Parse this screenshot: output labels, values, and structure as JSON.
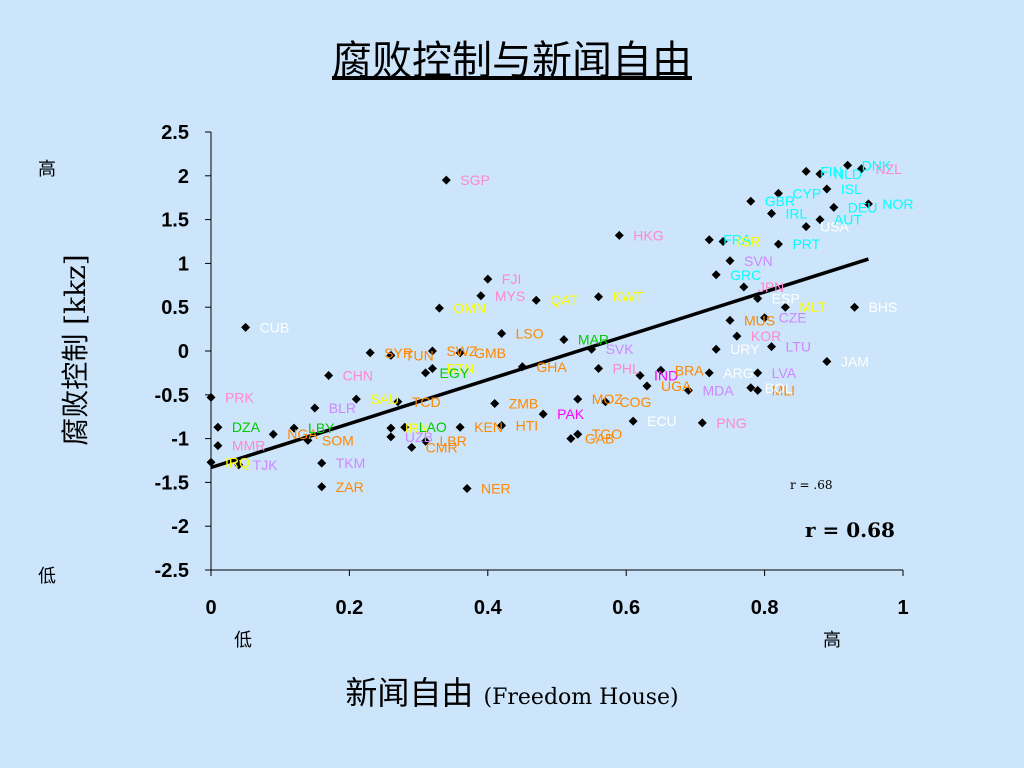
{
  "header": {
    "title": "腐败控制与新闻自由"
  },
  "axes": {
    "ylabel": "腐败控制 [kkz]",
    "y_high": "高",
    "y_low": "低",
    "xlabel_main": "新闻自由",
    "xlabel_source": "(Freedom House)",
    "x_low": "低",
    "x_high": "高"
  },
  "annotations": {
    "r_small": "r =  .68",
    "r_bold": "r = 0.68"
  },
  "colors": {
    "background": "#cce5fa",
    "point": "#000000",
    "trend": "#000000"
  },
  "chart_data": {
    "type": "scatter",
    "title": "腐败控制与新闻自由",
    "xlabel": "新闻自由 (Freedom House)",
    "ylabel": "腐败控制 [kkz]",
    "xlim": [
      0,
      1
    ],
    "ylim": [
      -2.5,
      2.5
    ],
    "x_ticks": [
      "0",
      "0.2",
      "0.4",
      "0.6",
      "0.8",
      "1"
    ],
    "y_ticks": [
      "2.5",
      "2",
      "1.5",
      "1",
      "0.5",
      "0",
      "-0.5",
      "-1",
      "-1.5",
      "-2",
      "-2.5"
    ],
    "trend_line": {
      "x": [
        0,
        0.95
      ],
      "y": [
        -1.33,
        1.05
      ]
    },
    "points": [
      {
        "label": "SGP",
        "x": 0.34,
        "y": 1.95,
        "color": "#ff88cc"
      },
      {
        "label": "CUB",
        "x": 0.05,
        "y": 0.27,
        "color": "#ffffff"
      },
      {
        "label": "PRK",
        "x": 0.0,
        "y": -0.53,
        "color": "#ff88cc"
      },
      {
        "label": "DZA",
        "x": 0.01,
        "y": -0.87,
        "color": "#00cc00"
      },
      {
        "label": "MMR",
        "x": 0.01,
        "y": -1.08,
        "color": "#ff88cc"
      },
      {
        "label": "IRQ",
        "x": 0.0,
        "y": -1.27,
        "color": "#ffff00"
      },
      {
        "label": "TJK",
        "x": 0.04,
        "y": -1.3,
        "color": "#cc88ff"
      },
      {
        "label": "NGA",
        "x": 0.09,
        "y": -0.95,
        "color": "#ff8800"
      },
      {
        "label": "LBY",
        "x": 0.12,
        "y": -0.88,
        "color": "#00cc00"
      },
      {
        "label": "BLR",
        "x": 0.15,
        "y": -0.65,
        "color": "#cc88ff"
      },
      {
        "label": "CHN",
        "x": 0.17,
        "y": -0.28,
        "color": "#ff88cc"
      },
      {
        "label": "TKM",
        "x": 0.16,
        "y": -1.28,
        "color": "#cc88ff"
      },
      {
        "label": "ZAR",
        "x": 0.16,
        "y": -1.55,
        "color": "#ff8800"
      },
      {
        "label": "SOM",
        "x": 0.14,
        "y": -1.02,
        "color": "#ff8800"
      },
      {
        "label": "SAU",
        "x": 0.21,
        "y": -0.55,
        "color": "#ffff00"
      },
      {
        "label": "TCD",
        "x": 0.27,
        "y": -0.58,
        "color": "#ff8800"
      },
      {
        "label": "TUN",
        "x": 0.26,
        "y": -0.05,
        "color": "#ff8800"
      },
      {
        "label": "SYR",
        "x": 0.23,
        "y": -0.02,
        "color": "#ff8800"
      },
      {
        "label": "IRN",
        "x": 0.26,
        "y": -0.88,
        "color": "#ffff00"
      },
      {
        "label": "LAO",
        "x": 0.28,
        "y": -0.87,
        "color": "#00cc00"
      },
      {
        "label": "UZB",
        "x": 0.26,
        "y": -0.98,
        "color": "#cc88ff"
      },
      {
        "label": "CMR",
        "x": 0.29,
        "y": -1.1,
        "color": "#ff8800"
      },
      {
        "label": "LBR",
        "x": 0.31,
        "y": -1.03,
        "color": "#ff8800"
      },
      {
        "label": "BTN",
        "x": 0.32,
        "y": -0.2,
        "color": "#ffff00"
      },
      {
        "label": "EGY",
        "x": 0.31,
        "y": -0.25,
        "color": "#00cc00"
      },
      {
        "label": "SWZ",
        "x": 0.32,
        "y": 0.0,
        "color": "#ff8800"
      },
      {
        "label": "OMN",
        "x": 0.33,
        "y": 0.49,
        "color": "#ffff00"
      },
      {
        "label": "GMB",
        "x": 0.36,
        "y": -0.02,
        "color": "#ff8800"
      },
      {
        "label": "KEN",
        "x": 0.36,
        "y": -0.87,
        "color": "#ff8800"
      },
      {
        "label": "NER",
        "x": 0.37,
        "y": -1.57,
        "color": "#ff8800"
      },
      {
        "label": "FJI",
        "x": 0.4,
        "y": 0.82,
        "color": "#ff88cc"
      },
      {
        "label": "MYS",
        "x": 0.39,
        "y": 0.63,
        "color": "#ff88cc"
      },
      {
        "label": "LSO",
        "x": 0.42,
        "y": 0.2,
        "color": "#ff8800"
      },
      {
        "label": "ZMB",
        "x": 0.41,
        "y": -0.6,
        "color": "#ff8800"
      },
      {
        "label": "HTI",
        "x": 0.42,
        "y": -0.85,
        "color": "#ff8800"
      },
      {
        "label": "QAT",
        "x": 0.47,
        "y": 0.58,
        "color": "#ffff00"
      },
      {
        "label": "GHA",
        "x": 0.45,
        "y": -0.18,
        "color": "#ff8800"
      },
      {
        "label": "PAK",
        "x": 0.48,
        "y": -0.72,
        "color": "#ff00ff"
      },
      {
        "label": "GAB",
        "x": 0.52,
        "y": -1.0,
        "color": "#ff8800"
      },
      {
        "label": "MAR",
        "x": 0.51,
        "y": 0.13,
        "color": "#00cc00"
      },
      {
        "label": "KWT",
        "x": 0.56,
        "y": 0.62,
        "color": "#ffff00"
      },
      {
        "label": "SVK",
        "x": 0.55,
        "y": 0.02,
        "color": "#cc88ff"
      },
      {
        "label": "MOZ",
        "x": 0.53,
        "y": -0.55,
        "color": "#ff8800"
      },
      {
        "label": "COG",
        "x": 0.57,
        "y": -0.58,
        "color": "#ff8800"
      },
      {
        "label": "TGO",
        "x": 0.53,
        "y": -0.95,
        "color": "#ff8800"
      },
      {
        "label": "HKG",
        "x": 0.59,
        "y": 1.32,
        "color": "#ff88cc"
      },
      {
        "label": "PHL",
        "x": 0.56,
        "y": -0.2,
        "color": "#ff88cc"
      },
      {
        "label": "IND",
        "x": 0.62,
        "y": -0.28,
        "color": "#ff00ff"
      },
      {
        "label": "UGA",
        "x": 0.63,
        "y": -0.4,
        "color": "#ff8800"
      },
      {
        "label": "ECU",
        "x": 0.61,
        "y": -0.8,
        "color": "#ffffff"
      },
      {
        "label": "BRA",
        "x": 0.65,
        "y": -0.22,
        "color": "#ff8800"
      },
      {
        "label": "MDA",
        "x": 0.69,
        "y": -0.45,
        "color": "#cc88ff"
      },
      {
        "label": "MLI",
        "x": 0.79,
        "y": -0.45,
        "color": "#ff8800"
      },
      {
        "label": "PNG",
        "x": 0.71,
        "y": -0.82,
        "color": "#ff88cc"
      },
      {
        "label": "ARG",
        "x": 0.72,
        "y": -0.25,
        "color": "#ffffff"
      },
      {
        "label": "URY",
        "x": 0.73,
        "y": 0.02,
        "color": "#ffffff"
      },
      {
        "label": "LVA",
        "x": 0.79,
        "y": -0.25,
        "color": "#cc88ff"
      },
      {
        "label": "BOL",
        "x": 0.78,
        "y": -0.42,
        "color": "#ffffff"
      },
      {
        "label": "LTU",
        "x": 0.81,
        "y": 0.05,
        "color": "#cc88ff"
      },
      {
        "label": "KOR",
        "x": 0.76,
        "y": 0.17,
        "color": "#ff88cc"
      },
      {
        "label": "MUS",
        "x": 0.75,
        "y": 0.35,
        "color": "#ff8800"
      },
      {
        "label": "CZE",
        "x": 0.8,
        "y": 0.38,
        "color": "#cc88ff"
      },
      {
        "label": "MLT",
        "x": 0.83,
        "y": 0.5,
        "color": "#ffff00"
      },
      {
        "label": "JAM",
        "x": 0.89,
        "y": -0.12,
        "color": "#ffffff"
      },
      {
        "label": "BHS",
        "x": 0.93,
        "y": 0.5,
        "color": "#ffffff"
      },
      {
        "label": "ESP",
        "x": 0.79,
        "y": 0.6,
        "color": "#ffffff"
      },
      {
        "label": "JPN",
        "x": 0.77,
        "y": 0.73,
        "color": "#ff88cc"
      },
      {
        "label": "GRC",
        "x": 0.73,
        "y": 0.87,
        "color": "#00ffff"
      },
      {
        "label": "SVN",
        "x": 0.75,
        "y": 1.03,
        "color": "#cc88ff"
      },
      {
        "label": "FRA",
        "x": 0.72,
        "y": 1.27,
        "color": "#00ffff"
      },
      {
        "label": "ISR",
        "x": 0.74,
        "y": 1.25,
        "color": "#ffff00"
      },
      {
        "label": "PRT",
        "x": 0.82,
        "y": 1.22,
        "color": "#00ffff"
      },
      {
        "label": "GBR",
        "x": 0.78,
        "y": 1.71,
        "color": "#00ffff"
      },
      {
        "label": "IRL",
        "x": 0.81,
        "y": 1.57,
        "color": "#00ffff"
      },
      {
        "label": "CYP",
        "x": 0.82,
        "y": 1.8,
        "color": "#00ffff"
      },
      {
        "label": "USA",
        "x": 0.86,
        "y": 1.42,
        "color": "#ffffff"
      },
      {
        "label": "AUT",
        "x": 0.88,
        "y": 1.5,
        "color": "#00ffff"
      },
      {
        "label": "ISL",
        "x": 0.89,
        "y": 1.85,
        "color": "#00ffff"
      },
      {
        "label": "DEU",
        "x": 0.9,
        "y": 1.64,
        "color": "#00ffff"
      },
      {
        "label": "NOR",
        "x": 0.95,
        "y": 1.68,
        "color": "#00ffff"
      },
      {
        "label": "FIN",
        "x": 0.86,
        "y": 2.05,
        "color": "#00ffff"
      },
      {
        "label": "NLD",
        "x": 0.88,
        "y": 2.02,
        "color": "#00ffff"
      },
      {
        "label": "DNK",
        "x": 0.92,
        "y": 2.12,
        "color": "#00ffff"
      },
      {
        "label": "NZL",
        "x": 0.94,
        "y": 2.08,
        "color": "#ff88cc"
      }
    ]
  }
}
